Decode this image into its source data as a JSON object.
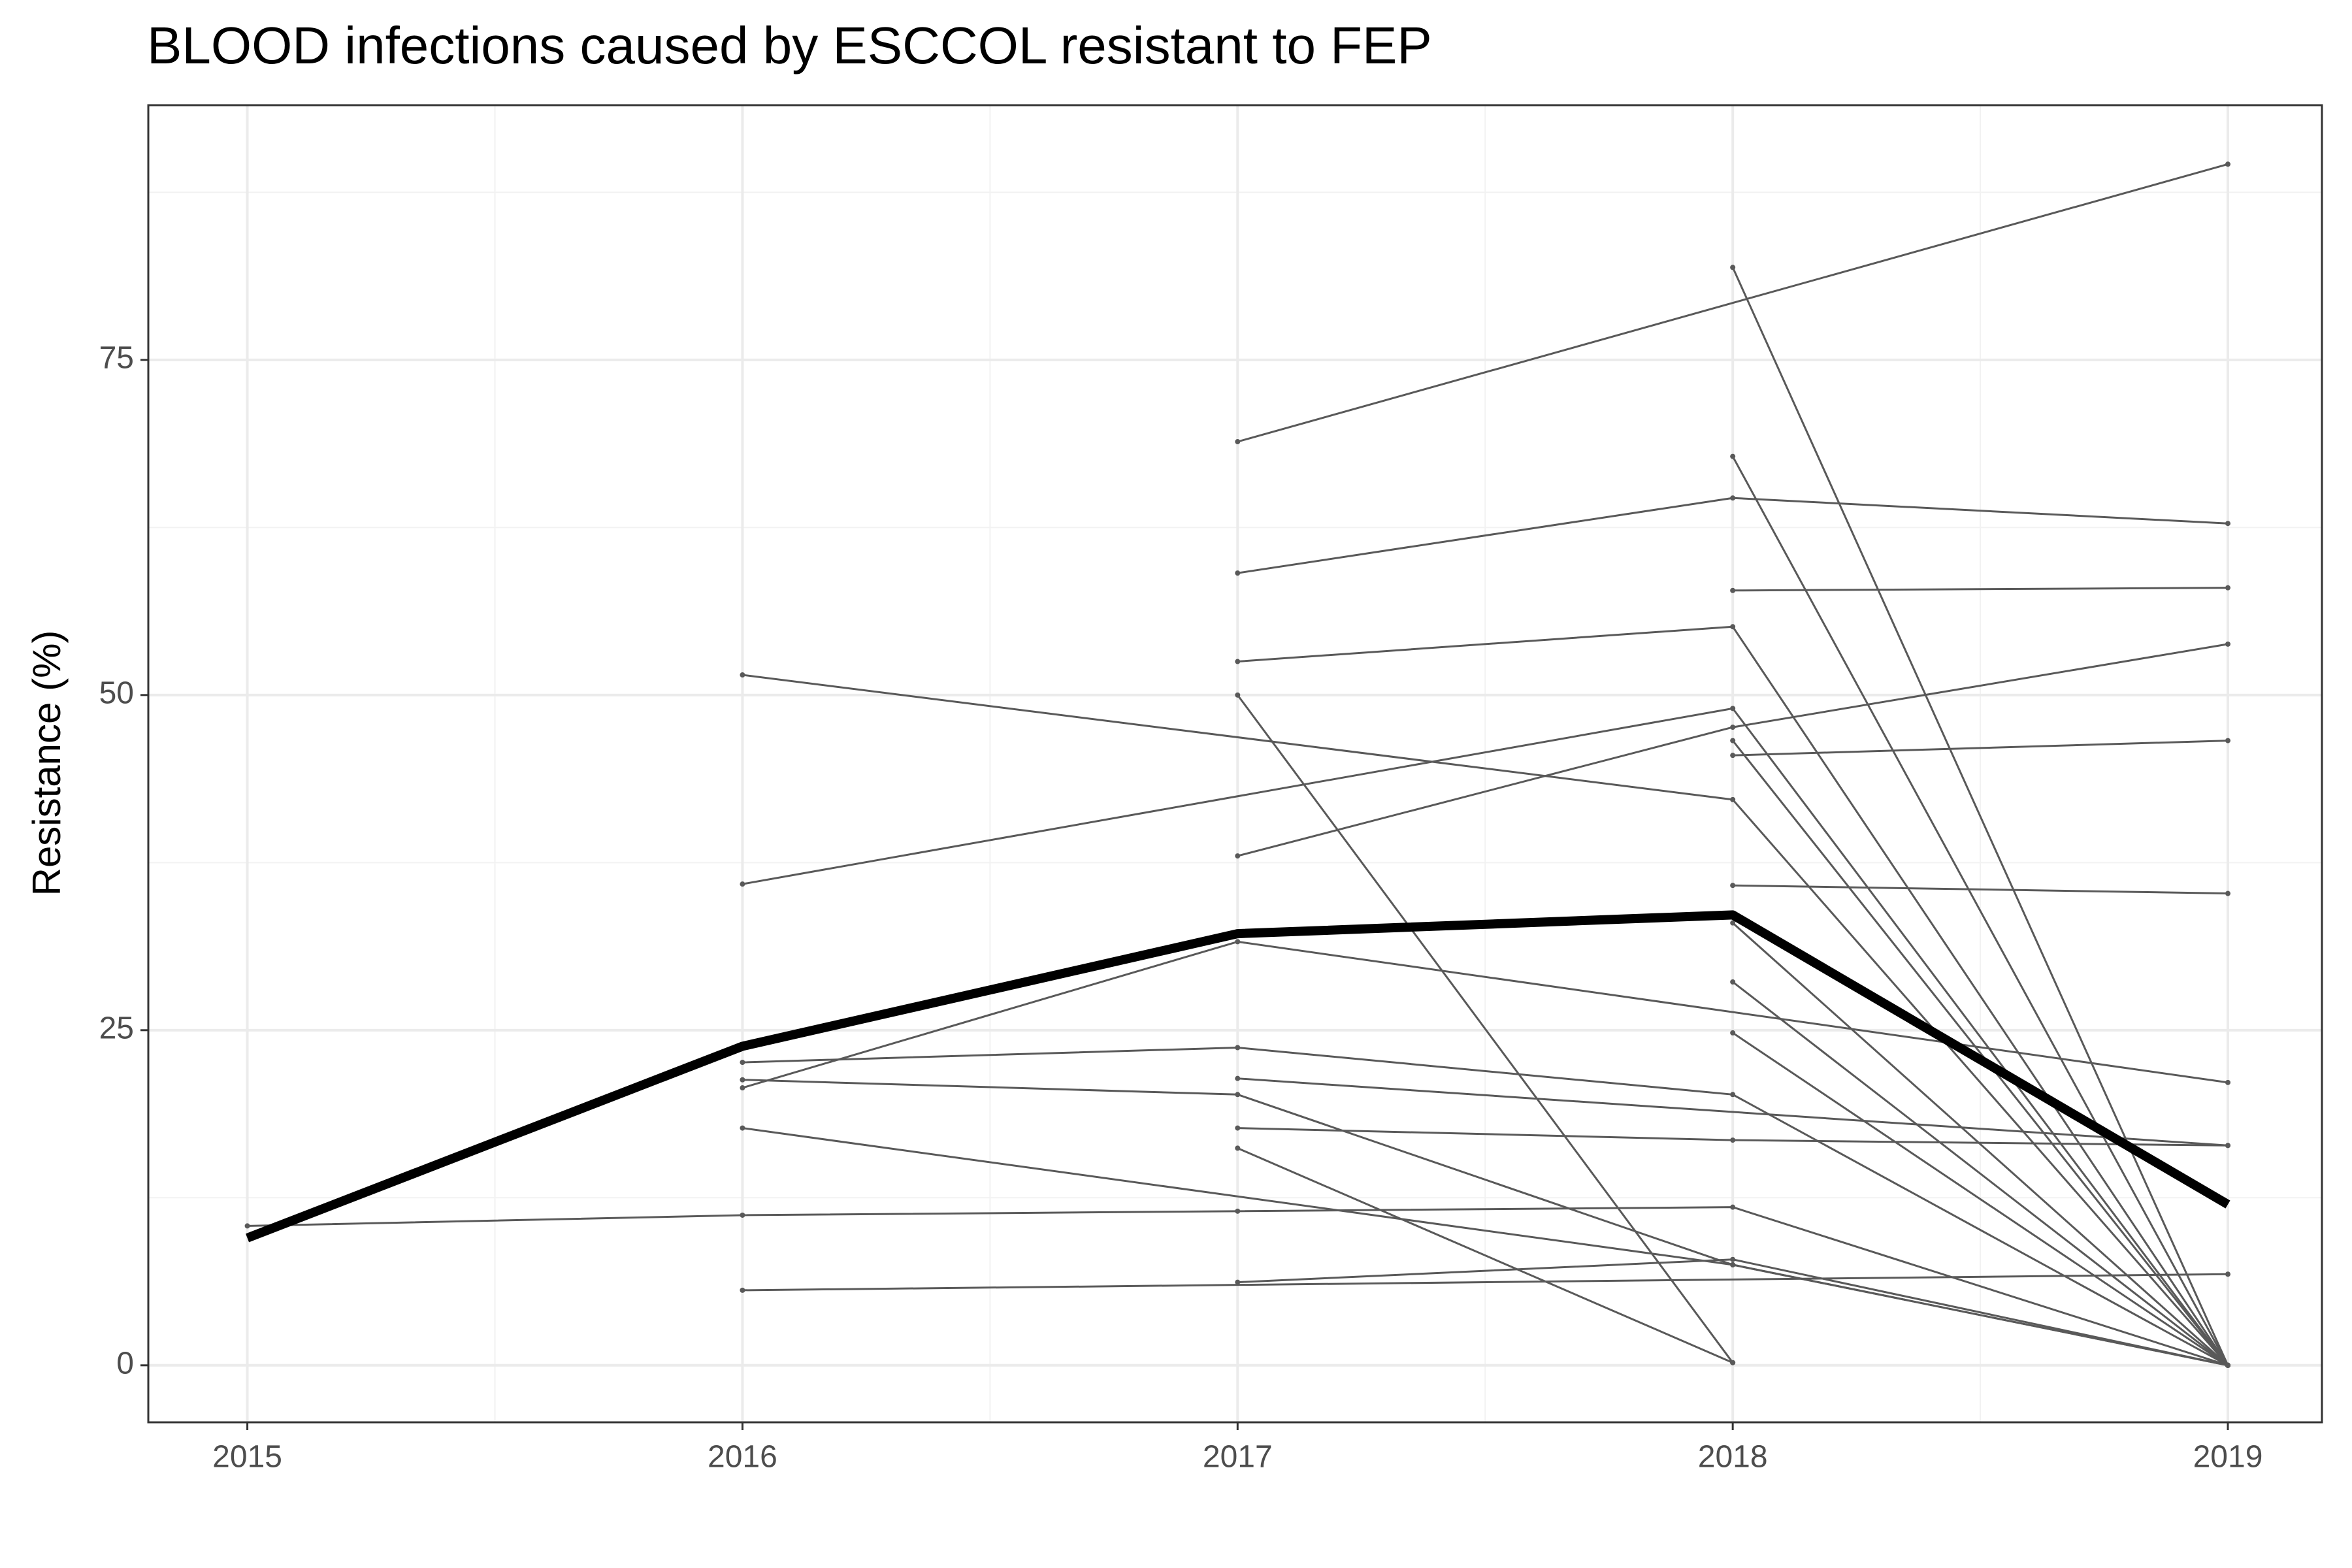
{
  "chart_data": {
    "type": "line",
    "title": "BLOOD infections caused by ESCCOL resistant to FEP",
    "y_label": "Resistance (%)",
    "xlim": [
      2014.8,
      2019.19
    ],
    "xticks": [
      2015,
      2016,
      2017,
      2018,
      2019
    ],
    "minor_xticks": [
      2015.5,
      2016.5,
      2017.5,
      2018.5
    ],
    "ylim": [
      -4.25,
      94
    ],
    "yticks": [
      0,
      25,
      50,
      75
    ],
    "minor_yticks": [
      12.5,
      37.5,
      62.5,
      87.5
    ],
    "grid": true,
    "series": [
      {
        "color": "#595959",
        "x": [
          2015,
          2016,
          2017,
          2018,
          2019
        ],
        "values": [
          10.4,
          11.2,
          11.5,
          11.8,
          0
        ]
      },
      {
        "color": "#595959",
        "x": [
          2016,
          2018,
          2019
        ],
        "values": [
          51.5,
          42.2,
          0
        ]
      },
      {
        "color": "#595959",
        "x": [
          2016,
          2018,
          2019
        ],
        "values": [
          35.9,
          49.0,
          0
        ]
      },
      {
        "color": "#595959",
        "x": [
          2016,
          2017,
          2019
        ],
        "values": [
          20.7,
          31.6,
          21.1
        ]
      },
      {
        "color": "#595959",
        "x": [
          2016,
          2017,
          2018,
          2019
        ],
        "values": [
          22.6,
          23.7,
          20.2,
          0
        ]
      },
      {
        "color": "#595959",
        "x": [
          2016,
          2017,
          2018,
          2019
        ],
        "values": [
          21.3,
          20.2,
          7.5,
          0
        ]
      },
      {
        "color": "#595959",
        "x": [
          2016,
          2018,
          2019
        ],
        "values": [
          17.7,
          7.5,
          0
        ]
      },
      {
        "color": "#595959",
        "x": [
          2016,
          2019
        ],
        "values": [
          5.6,
          6.8
        ]
      },
      {
        "color": "#595959",
        "x": [
          2017,
          2019
        ],
        "values": [
          68.9,
          89.6
        ]
      },
      {
        "color": "#595959",
        "x": [
          2017,
          2018,
          2019
        ],
        "values": [
          59.1,
          64.7,
          62.8
        ]
      },
      {
        "color": "#595959",
        "x": [
          2017,
          2018,
          2019
        ],
        "values": [
          52.5,
          55.1,
          0
        ]
      },
      {
        "color": "#595959",
        "x": [
          2017,
          2018
        ],
        "values": [
          50.0,
          0.2
        ]
      },
      {
        "color": "#595959",
        "x": [
          2017,
          2018,
          2019
        ],
        "values": [
          38.0,
          47.6,
          53.8
        ]
      },
      {
        "color": "#595959",
        "x": [
          2017,
          2019
        ],
        "values": [
          21.4,
          16.4
        ]
      },
      {
        "color": "#595959",
        "x": [
          2017,
          2018,
          2019
        ],
        "values": [
          17.7,
          16.8,
          16.4
        ]
      },
      {
        "color": "#595959",
        "x": [
          2017,
          2018
        ],
        "values": [
          16.2,
          0.2
        ]
      },
      {
        "color": "#595959",
        "x": [
          2017,
          2018,
          2019
        ],
        "values": [
          6.2,
          7.9,
          0
        ]
      },
      {
        "color": "#595959",
        "x": [
          2018,
          2019
        ],
        "values": [
          81.9,
          0
        ]
      },
      {
        "color": "#595959",
        "x": [
          2018,
          2019
        ],
        "values": [
          67.8,
          0
        ]
      },
      {
        "color": "#595959",
        "x": [
          2018,
          2019
        ],
        "values": [
          57.8,
          58.0
        ]
      },
      {
        "color": "#595959",
        "x": [
          2018,
          2019
        ],
        "values": [
          45.5,
          46.6
        ]
      },
      {
        "color": "#595959",
        "x": [
          2018,
          2019
        ],
        "values": [
          35.8,
          35.2
        ]
      },
      {
        "color": "#595959",
        "x": [
          2018,
          2019
        ],
        "values": [
          46.6,
          0
        ]
      },
      {
        "color": "#595959",
        "x": [
          2018,
          2019
        ],
        "values": [
          33.0,
          0
        ]
      },
      {
        "color": "#595959",
        "x": [
          2018,
          2019
        ],
        "values": [
          28.6,
          0
        ]
      },
      {
        "color": "#595959",
        "x": [
          2018,
          2019
        ],
        "values": [
          24.8,
          0
        ]
      },
      {
        "color": "#000000",
        "x": [
          2015,
          2016,
          2017,
          2018,
          2019
        ],
        "values": [
          9.5,
          23.8,
          32.2,
          33.6,
          12.0
        ]
      }
    ]
  }
}
